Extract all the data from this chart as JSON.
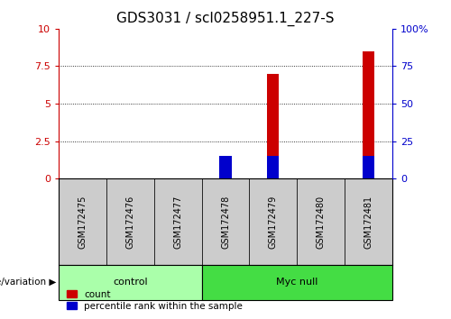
{
  "title": "GDS3031 / scl0258951.1_227-S",
  "samples": [
    "GSM172475",
    "GSM172476",
    "GSM172477",
    "GSM172478",
    "GSM172479",
    "GSM172480",
    "GSM172481"
  ],
  "count_values": [
    0,
    0,
    0,
    0.3,
    7.0,
    0,
    8.5
  ],
  "percentile_values": [
    0,
    0,
    0,
    15,
    15,
    0,
    15
  ],
  "left_ylim": [
    0,
    10
  ],
  "left_yticks": [
    0,
    2.5,
    5,
    7.5,
    10
  ],
  "right_ylim": [
    0,
    100
  ],
  "right_yticks": [
    0,
    25,
    50,
    75,
    100
  ],
  "right_yticklabels": [
    "0",
    "25",
    "50",
    "75",
    "100%"
  ],
  "left_ycolor": "#cc0000",
  "right_ycolor": "#0000cc",
  "bar_color_count": "#cc0000",
  "bar_color_pct": "#0000cc",
  "bar_width": 0.25,
  "groups": [
    {
      "label": "control",
      "span": 3,
      "color": "#aaffaa"
    },
    {
      "label": "Myc null",
      "span": 4,
      "color": "#44dd44"
    }
  ],
  "group_label_prefix": "genotype/variation",
  "legend_count_label": "count",
  "legend_pct_label": "percentile rank within the sample",
  "background_color": "#ffffff",
  "plot_bg_color": "#ffffff",
  "tick_label_bg": "#cccccc",
  "tick_label_fontsize": 7,
  "title_fontsize": 11
}
